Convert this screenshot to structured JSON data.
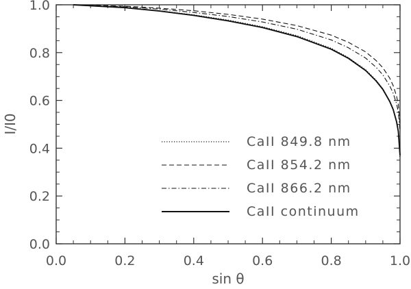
{
  "chart_data": {
    "type": "line",
    "xlabel": "sin θ",
    "ylabel": "I/I0",
    "xlim": [
      0.0,
      1.0
    ],
    "ylim": [
      0.0,
      1.0
    ],
    "xticks": [
      "0.0",
      "0.2",
      "0.4",
      "0.6",
      "0.8",
      "1.0"
    ],
    "yticks": [
      "0.0",
      "0.2",
      "0.4",
      "0.6",
      "0.8",
      "1.0"
    ],
    "grid": false,
    "legend_position": "lower-center",
    "series": [
      {
        "name": "CaII 849.8 nm",
        "style": "dotted",
        "x": [
          0.05,
          0.1,
          0.2,
          0.3,
          0.4,
          0.5,
          0.6,
          0.7,
          0.8,
          0.85,
          0.9,
          0.93,
          0.95,
          0.97,
          0.98,
          0.99,
          0.995,
          1.0
        ],
        "y": [
          1.0,
          0.996,
          0.988,
          0.975,
          0.958,
          0.936,
          0.908,
          0.871,
          0.818,
          0.779,
          0.728,
          0.685,
          0.649,
          0.597,
          0.562,
          0.508,
          0.465,
          0.36
        ]
      },
      {
        "name": "CaII 854.2 nm",
        "style": "dashed",
        "x": [
          0.05,
          0.1,
          0.2,
          0.3,
          0.4,
          0.5,
          0.6,
          0.7,
          0.8,
          0.85,
          0.9,
          0.93,
          0.95,
          0.97,
          0.98,
          0.99,
          0.995,
          1.0
        ],
        "y": [
          1.0,
          0.998,
          0.994,
          0.986,
          0.975,
          0.96,
          0.94,
          0.913,
          0.873,
          0.843,
          0.803,
          0.767,
          0.737,
          0.693,
          0.662,
          0.617,
          0.583,
          0.5
        ]
      },
      {
        "name": "CaII 866.2 nm",
        "style": "dash-dot",
        "x": [
          0.05,
          0.1,
          0.2,
          0.3,
          0.4,
          0.5,
          0.6,
          0.7,
          0.8,
          0.85,
          0.9,
          0.93,
          0.95,
          0.97,
          0.98,
          0.99,
          0.995,
          1.0
        ],
        "y": [
          1.0,
          0.997,
          0.992,
          0.982,
          0.968,
          0.951,
          0.928,
          0.898,
          0.853,
          0.82,
          0.777,
          0.739,
          0.707,
          0.661,
          0.63,
          0.585,
          0.551,
          0.47
        ]
      },
      {
        "name": "CaII continuum",
        "style": "solid",
        "x": [
          0.05,
          0.1,
          0.2,
          0.3,
          0.4,
          0.5,
          0.6,
          0.7,
          0.8,
          0.85,
          0.9,
          0.93,
          0.95,
          0.97,
          0.98,
          0.99,
          0.995,
          1.0
        ],
        "y": [
          1.0,
          0.996,
          0.988,
          0.974,
          0.956,
          0.933,
          0.905,
          0.867,
          0.814,
          0.776,
          0.725,
          0.682,
          0.646,
          0.596,
          0.562,
          0.51,
          0.47,
          0.37
        ]
      }
    ]
  }
}
